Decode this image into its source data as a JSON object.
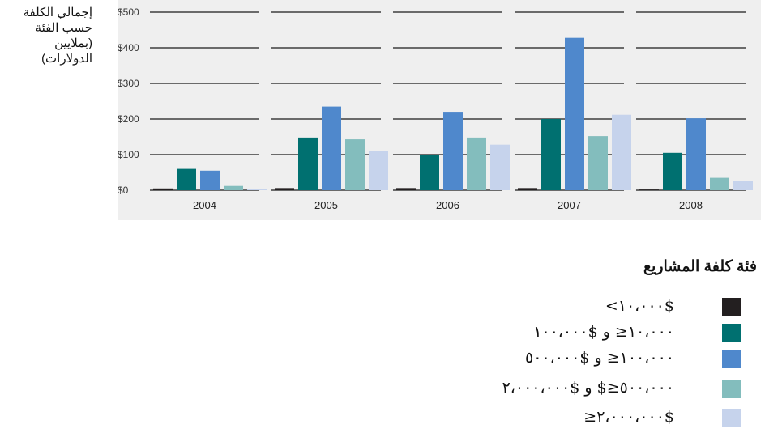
{
  "chart_data": {
    "type": "bar",
    "ylabel": "إجمالي الكلفة\nحسب الفئة\n(بملايين\nالدولارات)",
    "yticks": [
      "$0",
      "$100",
      "$200",
      "$300",
      "$400",
      "$500"
    ],
    "ylim": [
      0,
      500
    ],
    "categories": [
      "2004",
      "2005",
      "2006",
      "2007",
      "2008"
    ],
    "grid": true,
    "series": [
      {
        "name": "$١٠،٠٠٠>",
        "color": "#231f20",
        "values": [
          5,
          6,
          6,
          6,
          2
        ]
      },
      {
        "name": "١٠،٠٠٠≤ و $١٠٠،٠٠٠",
        "color": "#007070",
        "values": [
          60,
          148,
          99,
          200,
          105
        ]
      },
      {
        "name": "١٠٠،٠٠٠≤ و $٥٠٠،٠٠٠",
        "color": "#4f88cc",
        "values": [
          55,
          235,
          218,
          428,
          202
        ]
      },
      {
        "name": "٥٠٠،٠٠٠≤$ و $٢،٠٠٠،٠٠٠",
        "color": "#83bdbd",
        "values": [
          12,
          143,
          148,
          152,
          35
        ]
      },
      {
        "name": "$٢،٠٠٠،٠٠٠≤",
        "color": "#c6d3ec",
        "values": [
          3,
          110,
          128,
          212,
          25
        ]
      }
    ],
    "legend_title": "فئة كلفة المشاريع",
    "legend_placement": "bottom-right"
  }
}
